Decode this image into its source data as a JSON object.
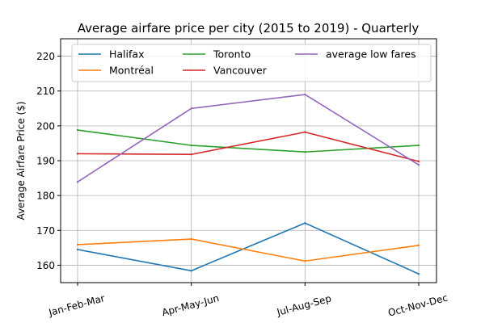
{
  "chart_data": {
    "type": "line",
    "title": "Average airfare price per city (2015 to 2019) - Quarterly",
    "xlabel": "",
    "ylabel": "Average Airfare Price ($)",
    "categories": [
      "Jan-Feb-Mar",
      "Apr-May-Jun",
      "Jul-Aug-Sep",
      "Oct-Nov-Dec"
    ],
    "ylim": [
      155,
      225
    ],
    "yticks": [
      160,
      170,
      180,
      190,
      200,
      210,
      220
    ],
    "grid": true,
    "legend_position": "top",
    "series": [
      {
        "name": "Halifax",
        "color": "#1f77b4",
        "values": [
          164.5,
          158.4,
          172.1,
          157.5
        ]
      },
      {
        "name": "Montréal",
        "color": "#ff7f0e",
        "values": [
          165.9,
          167.5,
          161.2,
          165.7
        ]
      },
      {
        "name": "Toronto",
        "color": "#2ca02c",
        "values": [
          198.8,
          194.4,
          192.5,
          194.4
        ]
      },
      {
        "name": "Vancouver",
        "color": "#d62728",
        "values": [
          192.0,
          191.8,
          198.2,
          189.8
        ]
      },
      {
        "name": "average low fares",
        "color": "#9467bd",
        "values": [
          183.9,
          205.0,
          209.0,
          188.8
        ]
      }
    ]
  }
}
